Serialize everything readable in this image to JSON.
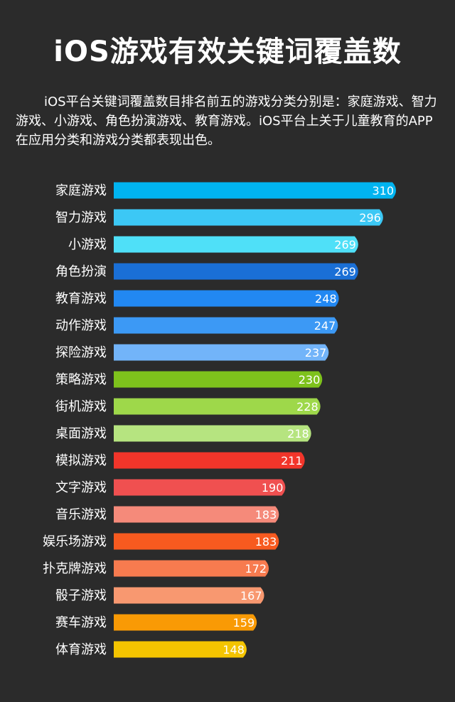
{
  "header": {
    "title": "iOS游戏有效关键词覆盖数",
    "description": "iOS平台关键词覆盖数目排名前五的游戏分类分别是：家庭游戏、智力游戏、小游戏、角色扮演游戏、教育游戏。iOS平台上关于儿童教育的APP在应用分类和游戏分类都表现出色。"
  },
  "chart_data": {
    "type": "bar",
    "orientation": "horizontal",
    "title": "iOS游戏有效关键词覆盖数",
    "xlabel": "",
    "ylabel": "",
    "xlim": [
      0,
      310
    ],
    "grid": false,
    "categories": [
      "家庭游戏",
      "智力游戏",
      "小游戏",
      "角色扮演",
      "教育游戏",
      "动作游戏",
      "探险游戏",
      "策略游戏",
      "街机游戏",
      "桌面游戏",
      "模拟游戏",
      "文字游戏",
      "音乐游戏",
      "娱乐场游戏",
      "扑克牌游戏",
      "骰子游戏",
      "赛车游戏",
      "体育游戏"
    ],
    "values": [
      310,
      296,
      269,
      269,
      248,
      247,
      237,
      230,
      228,
      218,
      211,
      190,
      183,
      183,
      172,
      167,
      159,
      148
    ],
    "colors": [
      "#00b4f0",
      "#3cc8f5",
      "#4fe0f8",
      "#1a6fd6",
      "#2288f2",
      "#3c99f5",
      "#72b4f9",
      "#7ec21c",
      "#9ed84a",
      "#b6e480",
      "#f2352a",
      "#f05050",
      "#f58a7a",
      "#f75a1f",
      "#f77b4f",
      "#f89870",
      "#f99a05",
      "#f4c400"
    ]
  }
}
